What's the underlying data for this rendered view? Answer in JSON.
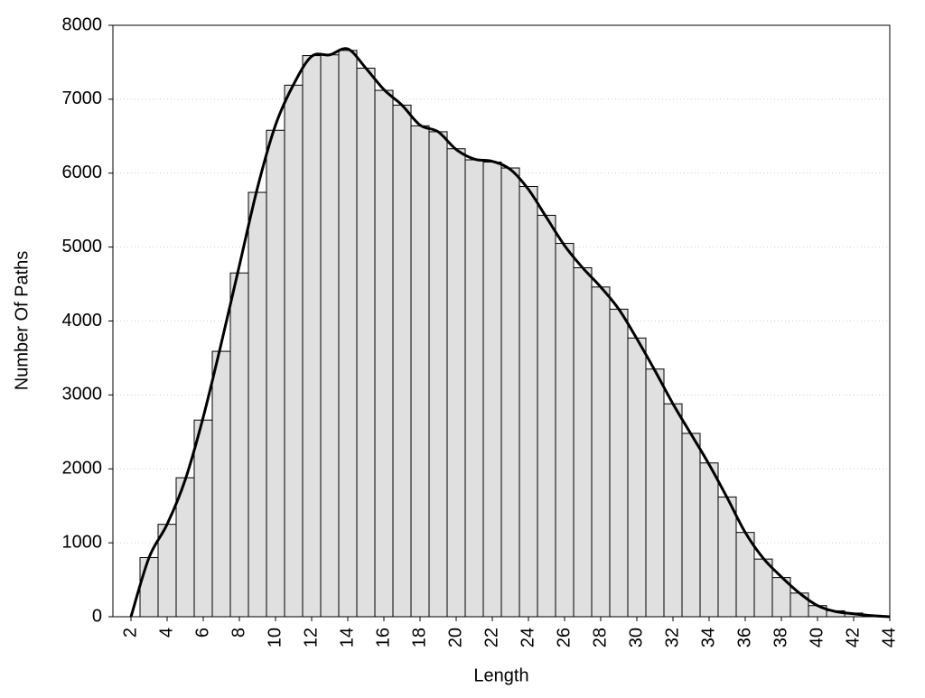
{
  "chart_data": {
    "type": "histogram",
    "xlabel": "Length",
    "ylabel": "Number Of Paths",
    "bins": [
      2.5,
      3.5,
      4.5,
      5.5,
      6.5,
      7.5,
      8.5,
      9.5,
      10.5,
      11.5,
      12.5,
      13.5,
      14.5,
      15.5,
      16.5,
      17.5,
      18.5,
      19.5,
      20.5,
      21.5,
      22.5,
      23.5,
      24.5,
      25.5,
      26.5,
      27.5,
      28.5,
      29.5,
      30.5,
      31.5,
      32.5,
      33.5,
      34.5,
      35.5,
      36.5,
      37.5,
      38.5,
      39.5,
      40.5,
      41.5,
      42.5,
      43.5
    ],
    "counts": [
      800,
      1250,
      1880,
      2660,
      3590,
      4650,
      5740,
      6580,
      7190,
      7590,
      7600,
      7660,
      7420,
      7120,
      6920,
      6640,
      6560,
      6330,
      6180,
      6150,
      6070,
      5820,
      5430,
      5050,
      4720,
      4460,
      4160,
      3770,
      3350,
      2880,
      2480,
      2080,
      1620,
      1140,
      780,
      530,
      320,
      150,
      80,
      50,
      20
    ],
    "color": "#e0e0e0",
    "curve": {
      "color": "#000000",
      "x": [
        2,
        3,
        4,
        5,
        6,
        7,
        8,
        9,
        10,
        11,
        12,
        13,
        14,
        15,
        16,
        17,
        18,
        19,
        20,
        21,
        22,
        23,
        24,
        25,
        26,
        27,
        28,
        29,
        30,
        31,
        32,
        33,
        34,
        35,
        36,
        37,
        38,
        39,
        40,
        41,
        42,
        43,
        44
      ],
      "values": [
        0,
        800,
        1250,
        1850,
        2700,
        3700,
        4750,
        5800,
        6650,
        7200,
        7580,
        7600,
        7680,
        7420,
        7130,
        6920,
        6650,
        6560,
        6320,
        6190,
        6160,
        6050,
        5780,
        5400,
        5020,
        4720,
        4460,
        4160,
        3760,
        3330,
        2880,
        2470,
        2060,
        1610,
        1140,
        790,
        540,
        320,
        150,
        70,
        40,
        15,
        0
      ]
    },
    "xlim": [
      1,
      44
    ],
    "ylim": [
      0,
      8000
    ],
    "xticks": [
      2,
      4,
      6,
      8,
      10,
      12,
      14,
      16,
      18,
      20,
      22,
      24,
      26,
      28,
      30,
      32,
      34,
      36,
      38,
      40,
      42,
      44
    ],
    "yticks": [
      0,
      1000,
      2000,
      3000,
      4000,
      5000,
      6000,
      7000,
      8000
    ],
    "grid": true
  }
}
